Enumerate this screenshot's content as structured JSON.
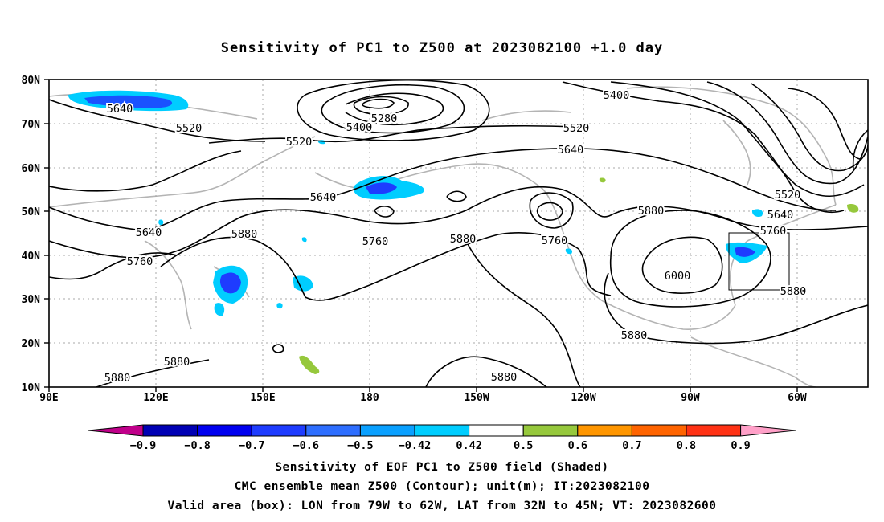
{
  "title": "Sensitivity of PC1 to Z500 at 2023082100 +1.0 day",
  "map": {
    "lat_labels": [
      "80N",
      "70N",
      "60N",
      "50N",
      "40N",
      "30N",
      "20N",
      "10N"
    ],
    "lon_labels": [
      "90E",
      "120E",
      "150E",
      "180",
      "150W",
      "120W",
      "90W",
      "60W"
    ],
    "contour_labels": [
      {
        "text": "5640"
      },
      {
        "text": "5520"
      },
      {
        "text": "5280"
      },
      {
        "text": "5400"
      },
      {
        "text": "5520"
      },
      {
        "text": "5400"
      },
      {
        "text": "5520"
      },
      {
        "text": "5640"
      },
      {
        "text": "5640"
      },
      {
        "text": "5640"
      },
      {
        "text": "5880"
      },
      {
        "text": "5760"
      },
      {
        "text": "5760"
      },
      {
        "text": "5880"
      },
      {
        "text": "5760"
      },
      {
        "text": "5880"
      },
      {
        "text": "5520"
      },
      {
        "text": "5640"
      },
      {
        "text": "5760"
      },
      {
        "text": "6000"
      },
      {
        "text": "5880"
      },
      {
        "text": "5880"
      },
      {
        "text": "5880"
      },
      {
        "text": "5880"
      },
      {
        "text": "5880"
      }
    ]
  },
  "colorbar": {
    "labels": [
      "−0.9",
      "−0.8",
      "−0.7",
      "−0.6",
      "−0.5",
      "−0.42",
      "0.42",
      "0.5",
      "0.6",
      "0.7",
      "0.8",
      "0.9"
    ],
    "colors": [
      "#c0008a",
      "#0000b4",
      "#0000f0",
      "#1e3cff",
      "#2e6eff",
      "#0aa0ff",
      "#00cdff",
      "#ffffff",
      "#96c83c",
      "#ff9600",
      "#ff6400",
      "#ff3214",
      "#ff0000",
      "#ffa0c8"
    ]
  },
  "footer": {
    "line1": "Sensitivity of EOF PC1 to Z500 field (Shaded)",
    "line2": "CMC ensemble mean Z500 (Contour); unit(m); IT:2023082100",
    "line3": "Valid area (box): LON from 79W to 62W, LAT from 32N to 45N; VT: 2023082600"
  }
}
